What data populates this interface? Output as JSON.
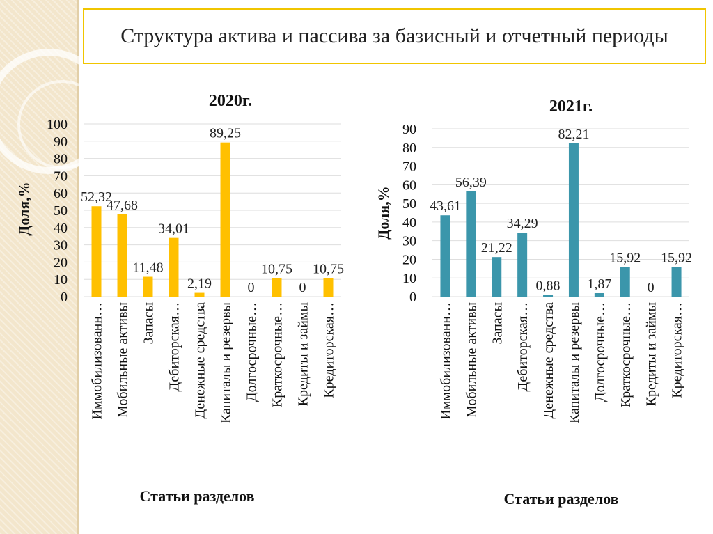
{
  "title": "Структура актива и пассива за базисный и отчетный периоды",
  "colors": {
    "bar_2020": "#ffc000",
    "bar_2021": "#3b96ab",
    "frame": "#f0c500"
  },
  "chart_data": [
    {
      "type": "bar",
      "title": "2020г.",
      "xlabel": "Статьи разделов",
      "ylabel": "Доля,%",
      "ylim": [
        0,
        100
      ],
      "yticks": [
        "0",
        "10",
        "20",
        "30",
        "40",
        "50",
        "60",
        "70",
        "80",
        "90",
        "100"
      ],
      "categories": [
        "Иммобилизованн…",
        "Мобильные активы",
        "Запасы",
        "Дебиторская…",
        "Денежные средства",
        "Капиталы и резервы",
        "Долгосрочные…",
        "Краткосрочные…",
        "Кредиты и займы",
        "Кредиторская…"
      ],
      "values": [
        52.32,
        47.68,
        11.48,
        34.01,
        2.19,
        89.25,
        0,
        10.75,
        0,
        10.75
      ],
      "labels": [
        "52,32",
        "47,68",
        "11,48",
        "34,01",
        "2,19",
        "89,25",
        "0",
        "10,75",
        "0",
        "10,75"
      ],
      "grid": true
    },
    {
      "type": "bar",
      "title": "2021г.",
      "xlabel": "Статьи разделов",
      "ylabel": "Доля,%",
      "ylim": [
        0,
        90
      ],
      "yticks": [
        "0",
        "10",
        "20",
        "30",
        "40",
        "50",
        "60",
        "70",
        "80",
        "90"
      ],
      "categories": [
        "Иммобилизованн…",
        "Мобильные активы",
        "Запасы",
        "Дебиторская…",
        "Денежные средства",
        "Капиталы и резервы",
        "Долгосрочные…",
        "Краткосрочные…",
        "Кредиты и займы",
        "Кредиторская…"
      ],
      "values": [
        43.61,
        56.39,
        21.22,
        34.29,
        0.88,
        82.21,
        1.87,
        15.92,
        0,
        15.92
      ],
      "labels": [
        "43,61",
        "56,39",
        "21,22",
        "34,29",
        "0,88",
        "82,21",
        "1,87",
        "15,92",
        "0",
        "15,92"
      ],
      "grid": true
    }
  ]
}
